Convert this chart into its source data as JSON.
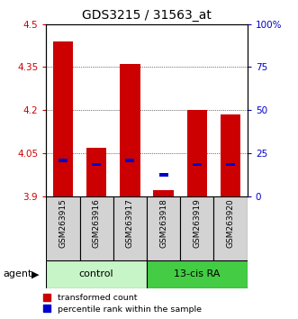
{
  "title": "GDS3215 / 31563_at",
  "samples": [
    "GSM263915",
    "GSM263916",
    "GSM263917",
    "GSM263918",
    "GSM263919",
    "GSM263920"
  ],
  "red_values": [
    4.44,
    4.07,
    4.36,
    3.92,
    4.2,
    4.185
  ],
  "blue_values": [
    4.025,
    4.01,
    4.025,
    3.975,
    4.01,
    4.01
  ],
  "ymin": 3.9,
  "ymax": 4.5,
  "yticks_left": [
    3.9,
    4.05,
    4.2,
    4.35,
    4.5
  ],
  "yticks_right_vals": [
    0,
    25,
    50,
    75,
    100
  ],
  "yticks_right_labels": [
    "0",
    "25",
    "50",
    "75",
    "100%"
  ],
  "bar_width": 0.6,
  "red_color": "#cc0000",
  "blue_color": "#0000cc",
  "control_color": "#c8f5c8",
  "ra_color": "#44cc44",
  "sample_bg_color": "#d3d3d3",
  "legend_red": "transformed count",
  "legend_blue": "percentile rank within the sample",
  "group_label": "agent",
  "n_control": 3,
  "n_ra": 3
}
